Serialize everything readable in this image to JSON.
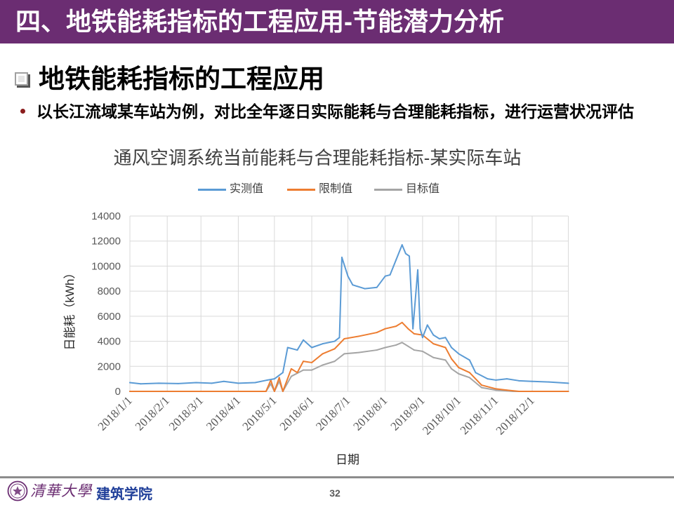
{
  "header": {
    "title": "四、地铁能耗指标的工程应用-节能潜力分析"
  },
  "section": {
    "heading": "地铁能耗指标的工程应用",
    "bullet": "以长江流域某车站为例，对比全年逐日实际能耗与合理能耗指标，进行运营状况评估"
  },
  "icons": {
    "heading_marker": "square-bullet-icon",
    "bullet_marker": "bullet-dot-icon",
    "footer_seal": "university-seal-icon"
  },
  "colors": {
    "brand_purple": "#6b2d72",
    "bullet_red": "#8b1d1d",
    "school_blue": "#21409a",
    "gridline": "#d9d9d9"
  },
  "chart_data": {
    "type": "line",
    "title": "通风空调系统当前能耗与合理能耗指标-某实际车站",
    "xlabel": "日期",
    "ylabel": "日能耗（kWh）",
    "ylim": [
      0,
      14000
    ],
    "y_ticks": [
      0,
      2000,
      4000,
      6000,
      8000,
      10000,
      12000,
      14000
    ],
    "xlim": [
      "2018-01-01",
      "2018-12-31"
    ],
    "x_ticks": [
      "2018/1/1",
      "2018/2/1",
      "2018/3/1",
      "2018/4/1",
      "2018/5/1",
      "2018/6/1",
      "2018/7/1",
      "2018/8/1",
      "2018/9/1",
      "2018/10/1",
      "2018/11/1",
      "2018/12/1"
    ],
    "grid": true,
    "legend_position": "top",
    "series": [
      {
        "name": "实测值",
        "color": "#5b9bd5",
        "x": [
          "2018-01-01",
          "2018-01-10",
          "2018-01-25",
          "2018-02-10",
          "2018-02-25",
          "2018-03-10",
          "2018-03-20",
          "2018-04-01",
          "2018-04-15",
          "2018-04-25",
          "2018-05-01",
          "2018-05-08",
          "2018-05-12",
          "2018-05-20",
          "2018-05-25",
          "2018-06-01",
          "2018-06-10",
          "2018-06-20",
          "2018-06-24",
          "2018-06-26",
          "2018-07-01",
          "2018-07-05",
          "2018-07-15",
          "2018-07-25",
          "2018-08-01",
          "2018-08-05",
          "2018-08-10",
          "2018-08-15",
          "2018-08-18",
          "2018-08-21",
          "2018-08-24",
          "2018-08-28",
          "2018-08-30",
          "2018-09-01",
          "2018-09-05",
          "2018-09-10",
          "2018-09-15",
          "2018-09-20",
          "2018-09-25",
          "2018-10-01",
          "2018-10-10",
          "2018-10-15",
          "2018-10-25",
          "2018-11-01",
          "2018-11-10",
          "2018-11-20",
          "2018-12-01",
          "2018-12-15",
          "2018-12-31"
        ],
        "y": [
          700,
          600,
          650,
          620,
          700,
          650,
          800,
          650,
          700,
          900,
          1000,
          1500,
          3500,
          3300,
          4100,
          3500,
          3800,
          4000,
          4300,
          10700,
          9200,
          8500,
          8200,
          8300,
          9200,
          9300,
          10500,
          11700,
          11000,
          10800,
          5000,
          9700,
          5000,
          4300,
          5300,
          4500,
          4200,
          4300,
          3500,
          3000,
          2500,
          1500,
          1000,
          900,
          1000,
          850,
          800,
          750,
          650
        ]
      },
      {
        "name": "限制值",
        "color": "#ed7d31",
        "x": [
          "2018-01-01",
          "2018-04-24",
          "2018-04-28",
          "2018-05-01",
          "2018-05-05",
          "2018-05-08",
          "2018-05-15",
          "2018-05-20",
          "2018-05-25",
          "2018-06-01",
          "2018-06-10",
          "2018-06-20",
          "2018-06-28",
          "2018-07-10",
          "2018-07-25",
          "2018-08-01",
          "2018-08-10",
          "2018-08-15",
          "2018-08-20",
          "2018-08-25",
          "2018-09-01",
          "2018-09-10",
          "2018-09-20",
          "2018-09-25",
          "2018-10-01",
          "2018-10-10",
          "2018-10-20",
          "2018-11-01",
          "2018-11-10",
          "2018-11-20",
          "2018-12-31"
        ],
        "y": [
          0,
          0,
          900,
          0,
          1100,
          0,
          1800,
          1500,
          2400,
          2300,
          3000,
          3400,
          4200,
          4400,
          4700,
          5000,
          5200,
          5500,
          5000,
          4600,
          4500,
          3800,
          3500,
          2600,
          1900,
          1500,
          500,
          200,
          100,
          0,
          0
        ]
      },
      {
        "name": "目标值",
        "color": "#a5a5a5",
        "x": [
          "2018-01-01",
          "2018-04-24",
          "2018-04-28",
          "2018-05-01",
          "2018-05-05",
          "2018-05-08",
          "2018-05-15",
          "2018-05-25",
          "2018-06-01",
          "2018-06-10",
          "2018-06-20",
          "2018-06-28",
          "2018-07-10",
          "2018-07-25",
          "2018-08-01",
          "2018-08-10",
          "2018-08-15",
          "2018-08-20",
          "2018-08-25",
          "2018-09-01",
          "2018-09-10",
          "2018-09-20",
          "2018-09-25",
          "2018-10-01",
          "2018-10-10",
          "2018-10-20",
          "2018-11-01",
          "2018-11-15",
          "2018-12-31"
        ],
        "y": [
          0,
          0,
          600,
          0,
          800,
          0,
          1200,
          1700,
          1700,
          2100,
          2400,
          3000,
          3100,
          3300,
          3500,
          3700,
          3900,
          3600,
          3300,
          3200,
          2700,
          2500,
          1800,
          1400,
          1100,
          300,
          100,
          0,
          0
        ]
      }
    ]
  },
  "footer": {
    "logo_text": "清華大學",
    "school": "建筑学院",
    "page_number": "32"
  }
}
